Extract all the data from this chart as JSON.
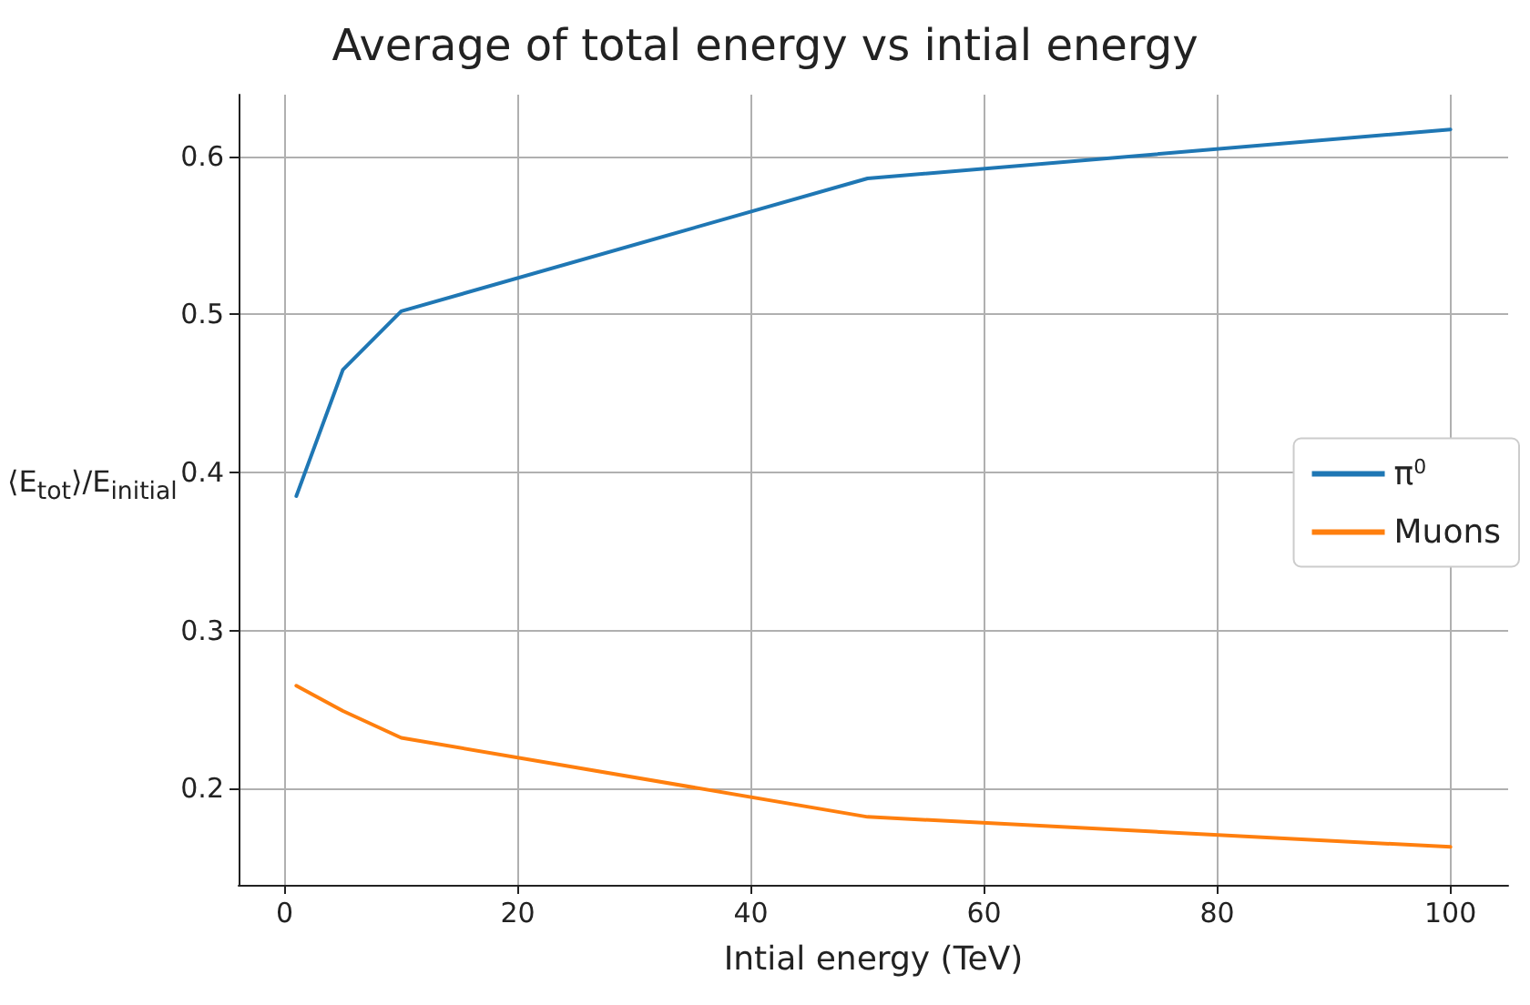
{
  "chart_data": {
    "type": "line",
    "title": "Average of total energy vs intial energy",
    "xlabel": "Intial energy (TeV)",
    "ylabel": "⟨E$_{tot}$⟩/E$_{initial}$",
    "x": [
      1,
      5,
      10,
      50,
      100
    ],
    "series": [
      {
        "name": "π$^{0}$",
        "color": "#1f77b4",
        "values": [
          0.385,
          0.465,
          0.502,
          0.586,
          0.617
        ]
      },
      {
        "name": "Muons",
        "color": "#ff7f0e",
        "values": [
          0.265,
          0.249,
          0.232,
          0.182,
          0.163
        ]
      }
    ],
    "xlim": [
      -3.95,
      104.95
    ],
    "xticks": [
      0,
      20,
      40,
      60,
      80,
      100
    ],
    "ylim": [
      0.139,
      0.639
    ],
    "yticks": [
      0.2,
      0.3,
      0.4,
      0.5,
      0.6
    ],
    "grid": true,
    "legend": "right",
    "marker": "none",
    "line_style": "solid"
  }
}
